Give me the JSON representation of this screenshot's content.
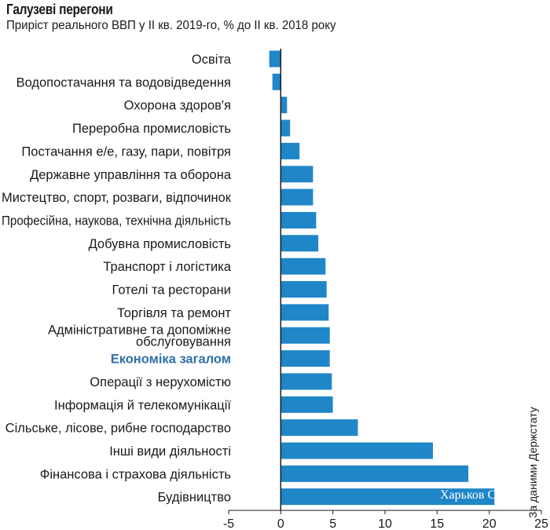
{
  "header": {
    "title": "Галузеві перегони",
    "subtitle": "Приріст реального ВВП у ІІ кв. 2019-го, % до ІІ кв. 2018 року"
  },
  "source": "За даними Держстату",
  "watermark": "Харьков С",
  "colors": {
    "bar": "#1f86c8",
    "highlight_label": "#2f6fa7",
    "axis": "#1a1a1a"
  },
  "chart_data": {
    "type": "bar",
    "orientation": "horizontal",
    "title": "Галузеві перегони",
    "subtitle": "Приріст реального ВВП у ІІ кв. 2019-го, % до ІІ кв. 2018 року",
    "xlabel": "",
    "ylabel": "",
    "xlim": [
      -5,
      25
    ],
    "xticks": [
      "-5",
      "0",
      "5",
      "10",
      "15",
      "20",
      "25"
    ],
    "highlight_category": "Економіка загалом",
    "categories": [
      [
        "Освіта"
      ],
      [
        "Водопостачання та водовідведення"
      ],
      [
        "Охорона здоров'я"
      ],
      [
        "Переробна промисловість"
      ],
      [
        "Постачання е/е, газу, пари, повітря"
      ],
      [
        "Державне управління та оборона"
      ],
      [
        "Мистецтво, спорт, розваги, відпочинок"
      ],
      [
        "Професійна, наукова, технічна діяльність"
      ],
      [
        "Добувна промисловість"
      ],
      [
        "Транспорт і логістика"
      ],
      [
        "Готелі та ресторани"
      ],
      [
        "Торгівля та ремонт"
      ],
      [
        "Адміністративне та допоміжне",
        "обслуговування"
      ],
      [
        "Економіка загалом"
      ],
      [
        "Операції з нерухомістю"
      ],
      [
        "Інформація й телекомунікації"
      ],
      [
        "Сільське, лісове, рибне господарство"
      ],
      [
        "Інші види діяльності"
      ],
      [
        "Фінансова і страхова діяльність"
      ],
      [
        "Будівництво"
      ]
    ],
    "values": [
      -1.1,
      -0.8,
      0.6,
      0.9,
      1.8,
      3.1,
      3.1,
      3.4,
      3.6,
      4.3,
      4.4,
      4.6,
      4.7,
      4.7,
      4.9,
      5.0,
      7.4,
      14.6,
      18.0,
      20.5
    ]
  }
}
